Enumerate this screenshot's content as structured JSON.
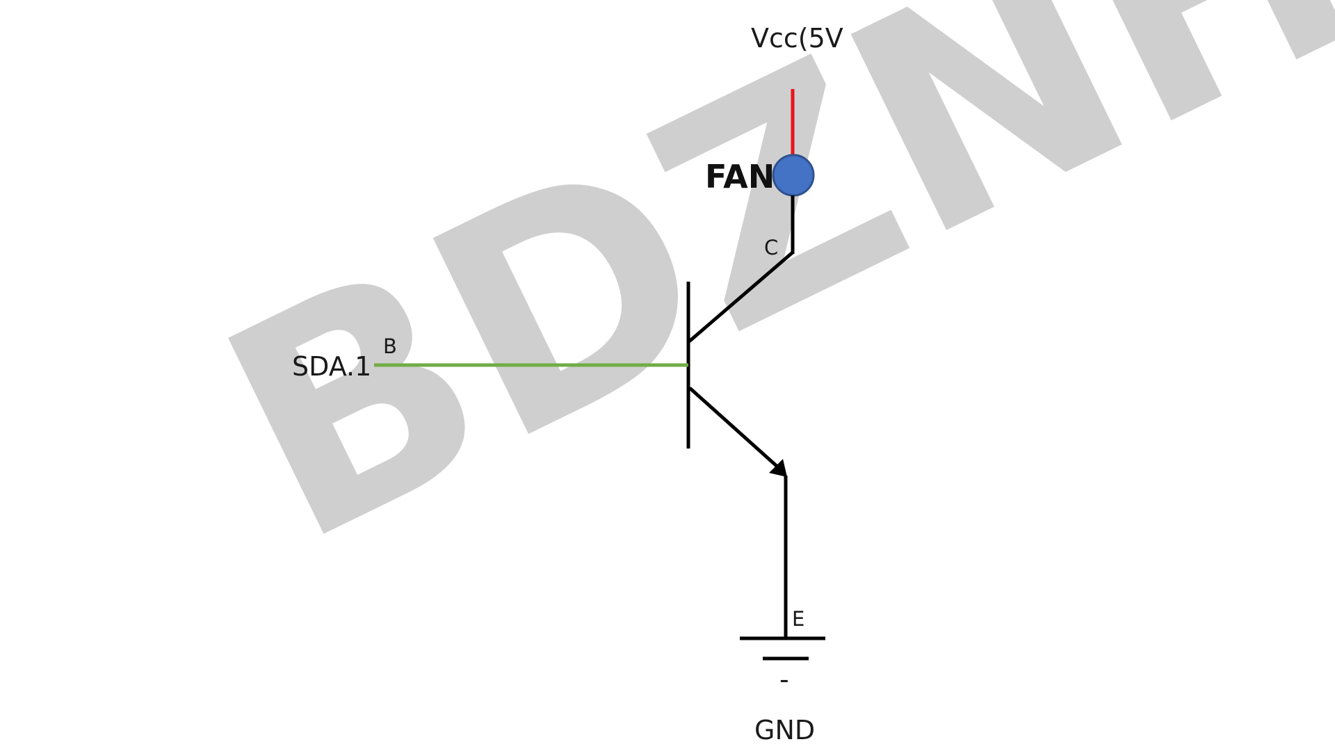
{
  "watermark": {
    "text": "BDZNH",
    "color": "#cfcfcf"
  },
  "labels": {
    "supply": "Vcc(5V",
    "fan": "FAN",
    "collector": "C",
    "base": "B",
    "signal": "SDA.1",
    "emitter": "E",
    "ground": "GND",
    "minus": "-"
  },
  "colors": {
    "supply_wire": "#e8141c",
    "signal_wire": "#70ad47",
    "fan_fill": "#4472c4",
    "fan_stroke": "#2f528f",
    "wire": "#000000"
  }
}
